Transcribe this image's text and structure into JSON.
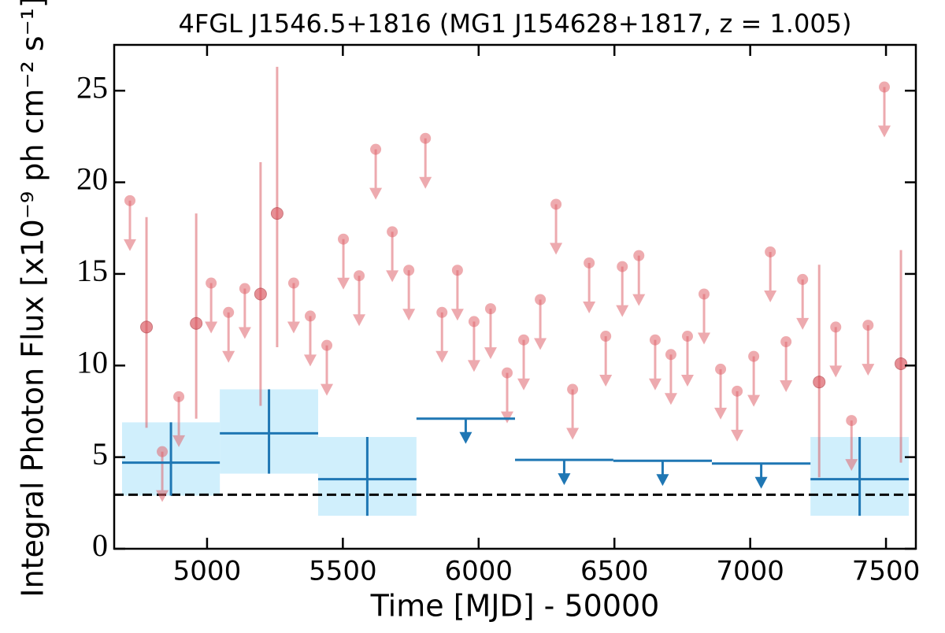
{
  "chart_data": {
    "type": "lightcurve",
    "title": "4FGL J1546.5+1816 (MG1 J154628+1817, z = 1.005)",
    "x_label": "Time [MJD] - 50000",
    "y_label": "Integral Photon Flux [x10⁻⁹ ph cm⁻² s⁻¹]",
    "xlim": [
      4658,
      7610
    ],
    "ylim": [
      0,
      27.5
    ],
    "xticks": [
      5000,
      5500,
      6000,
      6500,
      7000,
      7500
    ],
    "yticks": [
      0,
      5,
      10,
      15,
      20,
      25
    ],
    "reference_line": 2.95,
    "upper_limits": {
      "color": "#e0666e",
      "x": [
        4716,
        4835,
        4896,
        5015,
        5079,
        5139,
        5319,
        5380,
        5441,
        5502,
        5560,
        5621,
        5682,
        5743,
        5804,
        5865,
        5922,
        5983,
        6044,
        6105,
        6166,
        6227,
        6285,
        6346,
        6407,
        6468,
        6529,
        6590,
        6650,
        6708,
        6769,
        6830,
        6891,
        6952,
        7013,
        7074,
        7132,
        7193,
        7315,
        7373,
        7434,
        7494
      ],
      "values": [
        19.0,
        5.3,
        8.3,
        14.5,
        12.9,
        14.2,
        14.5,
        12.7,
        11.1,
        16.9,
        14.9,
        21.8,
        17.3,
        15.2,
        22.4,
        12.9,
        15.2,
        12.4,
        13.1,
        9.6,
        11.4,
        13.6,
        18.8,
        8.7,
        15.6,
        11.6,
        15.4,
        16.0,
        11.4,
        10.6,
        11.6,
        13.9,
        9.8,
        8.6,
        10.5,
        16.2,
        11.3,
        14.7,
        12.1,
        7.0,
        12.2,
        25.2
      ]
    },
    "detections": {
      "color": "#d9535b",
      "x": [
        4777,
        4960,
        5197,
        5258,
        7254,
        7555
      ],
      "values": [
        12.1,
        12.3,
        13.9,
        18.3,
        9.1,
        10.1
      ],
      "lower": [
        6.6,
        7.1,
        7.8,
        11.0,
        3.9,
        4.7
      ],
      "upper": [
        18.1,
        18.3,
        21.1,
        26.3,
        15.5,
        16.3
      ]
    },
    "bins": {
      "color": "#1f77b4",
      "fill": "#d0effc",
      "edges": [
        4687,
        5047,
        5409,
        5771,
        6134,
        6496,
        6859,
        7222,
        7584
      ],
      "values": [
        4.7,
        6.3,
        3.8,
        7.1,
        4.85,
        4.8,
        4.65,
        3.8
      ],
      "lower": [
        2.9,
        4.1,
        1.8,
        null,
        null,
        null,
        null,
        1.8
      ],
      "upper": [
        6.9,
        8.7,
        6.1,
        null,
        null,
        null,
        null,
        6.1
      ],
      "upper_limit": [
        false,
        false,
        false,
        true,
        true,
        true,
        true,
        false
      ]
    }
  }
}
